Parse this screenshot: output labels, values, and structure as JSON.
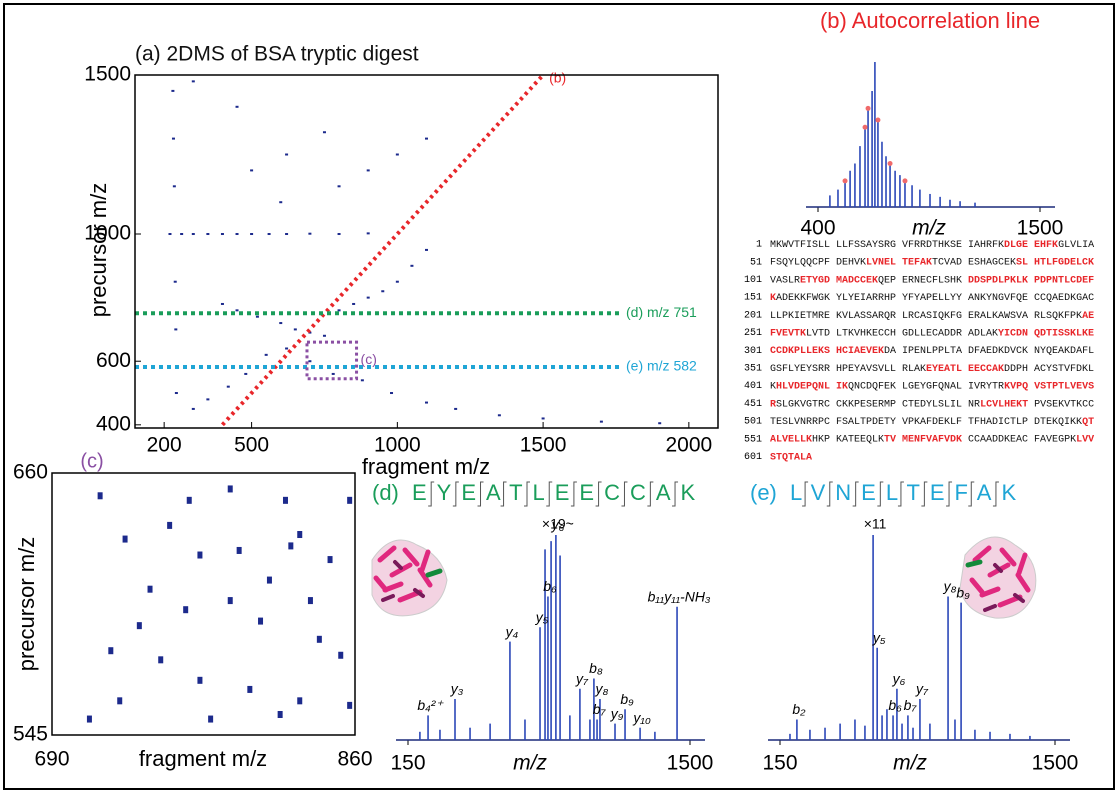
{
  "chart_data": [
    {
      "type": "scatter",
      "title": "(a) 2DMS of BSA tryptic digest",
      "xlabel": "fragment m/z",
      "ylabel": "precursor m/z",
      "xlim": [
        100,
        2100
      ],
      "xticks": [
        200,
        500,
        1000,
        1500,
        2000
      ],
      "ylim": [
        390,
        1500
      ],
      "yticks": [
        400,
        600,
        1000,
        1500
      ],
      "series": [
        {
          "color": "#1c2a8c",
          "x": [
            220,
            260,
            300,
            350,
            400,
            450,
            500,
            560,
            620,
            700,
            800,
            900,
            230,
            232,
            235,
            238,
            240,
            242,
            400,
            450,
            520,
            600,
            650,
            700,
            750,
            800,
            850,
            900,
            950,
            1000,
            1050,
            1100,
            300,
            350,
            420,
            480,
            550,
            620,
            700,
            780,
            880,
            980,
            1100,
            1200,
            1350,
            1500,
            1700,
            1900,
            500,
            620,
            750,
            600,
            800,
            900,
            1000,
            1100,
            450,
            300
          ],
          "values": [
            1000,
            1000,
            1000,
            1000,
            1000,
            1000,
            1000,
            1000,
            1000,
            1001,
            1000,
            1002,
            1450,
            1300,
            1150,
            850,
            700,
            500,
            780,
            760,
            740,
            720,
            700,
            690,
            680,
            760,
            780,
            800,
            820,
            850,
            900,
            950,
            450,
            480,
            520,
            560,
            620,
            640,
            600,
            560,
            540,
            500,
            470,
            450,
            430,
            420,
            410,
            405,
            1200,
            1250,
            1320,
            1100,
            1150,
            1200,
            1250,
            1300,
            1400,
            1480
          ]
        },
        {
          "name": "(b)",
          "type": "line",
          "color": "#e8262a",
          "x": [
            400,
            1500
          ],
          "values": [
            400,
            1500
          ]
        }
      ],
      "hlines": [
        {
          "y": 751,
          "label": "(d) m/z 751",
          "color": "#1a9d5a"
        },
        {
          "y": 582,
          "label": "(e) m/z 582",
          "color": "#1fa5d5"
        }
      ],
      "regions": [
        {
          "label": "(c)",
          "x": [
            690,
            860
          ],
          "y": [
            545,
            660
          ],
          "color": "#8a4fa3"
        }
      ]
    },
    {
      "type": "stem",
      "title": "(b) Autocorrelation line",
      "title_color": "#e8262a",
      "xlabel": "m/z",
      "xlim": [
        400,
        1500
      ],
      "xticks": [
        400,
        1500
      ],
      "ylim": [
        0,
        100
      ],
      "series": [
        {
          "color": "#2b47b8",
          "x": [
            459,
            499,
            534,
            559,
            583,
            608,
            633,
            648,
            668,
            682,
            697,
            717,
            737,
            757,
            782,
            806,
            831,
            866,
            905,
            955,
            1005,
            1054,
            1104,
            1178
          ],
          "values": [
            8,
            12,
            18,
            25,
            30,
            42,
            55,
            68,
            80,
            100,
            60,
            45,
            35,
            30,
            25,
            22,
            18,
            15,
            12,
            9,
            7,
            5,
            4,
            3
          ]
        },
        {
          "type": "dot",
          "color": "#f06a6a",
          "x": [
            534,
            633,
            648,
            697,
            757,
            831
          ],
          "values": [
            18,
            55,
            68,
            60,
            30,
            18
          ]
        }
      ]
    },
    {
      "type": "scatter",
      "title": "(c)",
      "title_color": "#8a4fa3",
      "xlabel": "fragment m/z",
      "ylabel": "precursor m/z",
      "xlim": [
        690,
        860
      ],
      "xticks": [
        690,
        860
      ],
      "ylim": [
        545,
        660
      ],
      "yticks": [
        545,
        660
      ],
      "series": [
        {
          "color": "#1c2a8c",
          "x": [
            731,
            756,
            773,
            795,
            824,
            829,
            846,
            745,
            765,
            790,
            807,
            840,
            723,
            751,
            773,
            801,
            829,
            852,
            728,
            711,
            779,
            818,
            857,
            739,
            812,
            835,
            767,
            717,
            790,
            821,
            857
          ],
          "values": [
            631,
            637,
            624,
            626,
            628,
            633,
            622,
            609,
            600,
            604,
            595,
            587,
            582,
            578,
            569,
            565,
            560,
            580,
            560,
            552,
            552,
            554,
            558,
            593,
            613,
            604,
            648,
            650,
            653,
            648,
            648
          ]
        }
      ]
    },
    {
      "type": "stem",
      "label": "(d)",
      "peptide": "EYEATLEECCAK",
      "title_color": "#1a9d5a",
      "xlabel": "m/z",
      "xlim": [
        150,
        1500
      ],
      "xticks": [
        150,
        1500
      ],
      "ylim": [
        0,
        100
      ],
      "scale_note": "×19~",
      "series": [
        {
          "color": "#2b47b8",
          "x": [
            207,
            246,
            303,
            375,
            447,
            543,
            638,
            710,
            782,
            806,
            820,
            835,
            858,
            878,
            925,
            973,
            1021,
            1040,
            1055,
            1069,
            1141,
            1189,
            1261,
            1332,
            1438
          ],
          "values": [
            4,
            12,
            5,
            20,
            6,
            8,
            48,
            10,
            55,
            93,
            70,
            97,
            100,
            90,
            12,
            25,
            10,
            30,
            10,
            20,
            8,
            15,
            6,
            4,
            65
          ]
        }
      ],
      "annotations": [
        {
          "text": "b₄²⁺",
          "x": 246
        },
        {
          "text": "y₃",
          "x": 375
        },
        {
          "text": "y₄",
          "x": 638
        },
        {
          "text": "y₅",
          "x": 782
        },
        {
          "text": "b₆",
          "x": 820
        },
        {
          "text": "y₆",
          "x": 858
        },
        {
          "text": "y₇",
          "x": 973
        },
        {
          "text": "b₈",
          "x": 1040
        },
        {
          "text": "b₇",
          "x": 1055
        },
        {
          "text": "y₈",
          "x": 1069
        },
        {
          "text": "y₉",
          "x": 1141
        },
        {
          "text": "b₉",
          "x": 1189
        },
        {
          "text": "y₁₀",
          "x": 1261
        },
        {
          "text": "b₁₁y₁₁-NH₃",
          "x": 1438
        }
      ]
    },
    {
      "type": "stem",
      "label": "(e)",
      "peptide": "LVNELTEFAK",
      "title_color": "#1fa5d5",
      "xlabel": "m/z",
      "xlim": [
        150,
        1500
      ],
      "xticks": [
        150,
        1500
      ],
      "ylim": [
        0,
        100
      ],
      "scale_note": "×11",
      "series": [
        {
          "color": "#2b47b8",
          "x": [
            199,
            233,
            297,
            371,
            445,
            518,
            567,
            607,
            627,
            651,
            675,
            705,
            724,
            749,
            778,
            803,
            837,
            886,
            975,
            1009,
            1039,
            1107,
            1181,
            1279,
            1377
          ],
          "values": [
            3,
            10,
            5,
            6,
            8,
            10,
            7,
            100,
            45,
            12,
            15,
            12,
            25,
            8,
            12,
            6,
            20,
            8,
            70,
            10,
            67,
            5,
            4,
            3,
            2
          ]
        }
      ],
      "annotations": [
        {
          "text": "b₂",
          "x": 233
        },
        {
          "text": "y₅",
          "x": 627
        },
        {
          "text": "b₆",
          "x": 705
        },
        {
          "text": "y₆",
          "x": 724
        },
        {
          "text": "b₇",
          "x": 778
        },
        {
          "text": "y₇",
          "x": 837
        },
        {
          "text": "y₈",
          "x": 975
        },
        {
          "text": "b₉",
          "x": 1039
        }
      ]
    }
  ],
  "sequence": {
    "highlight_color": "#e8262a",
    "rows": [
      {
        "start": 1,
        "segments": [
          {
            "text": "MKWVTFISLL LLFSSAYSRG VFRRDTHKSE IAHRFK",
            "highlight": false
          },
          {
            "text": "DLGE EHFK",
            "highlight": true
          },
          {
            "text": "GLVLIA",
            "highlight": false
          }
        ]
      },
      {
        "start": 51,
        "segments": [
          {
            "text": "FSQYLQQCPF DEHVK",
            "highlight": false
          },
          {
            "text": "LVNEL TEFAK",
            "highlight": true
          },
          {
            "text": "TCVAD ESHAGCEK",
            "highlight": false
          },
          {
            "text": "SL HTLFGDELCK",
            "highlight": true
          }
        ]
      },
      {
        "start": 101,
        "segments": [
          {
            "text": "VASLR",
            "highlight": false
          },
          {
            "text": "ETYGD MADCCEK",
            "highlight": true
          },
          {
            "text": "QEP ERNECFLSHK ",
            "highlight": false
          },
          {
            "text": "DDSPDLPKLK PDPNTLCDEF",
            "highlight": true
          }
        ]
      },
      {
        "start": 151,
        "segments": [
          {
            "text": "K",
            "highlight": true
          },
          {
            "text": "ADEKKFWGK YLYEIARRHP YFYAPELLYY ANKYNGVFQE CCQAEDKGAC",
            "highlight": false
          }
        ]
      },
      {
        "start": 201,
        "segments": [
          {
            "text": "LLPKIETMRE KVLASSARQR LRCASIQKFG ERALKAWSVA RLSQKFPK",
            "highlight": false
          },
          {
            "text": "AE",
            "highlight": true
          }
        ]
      },
      {
        "start": 251,
        "segments": [
          {
            "text": "FVEVTK",
            "highlight": true
          },
          {
            "text": "LVTD LTKVHKECCH GDLLECADDR ADLAK",
            "highlight": false
          },
          {
            "text": "YICDN QDTISSKLKE",
            "highlight": true
          }
        ]
      },
      {
        "start": 301,
        "segments": [
          {
            "text": "CCDKPLLEKS HCIAEVEK",
            "highlight": true
          },
          {
            "text": "DA IPENLPPLTA DFAEDKDVCK NYQEAKDAFL",
            "highlight": false
          }
        ]
      },
      {
        "start": 351,
        "segments": [
          {
            "text": "GSFLYEYSRR HPEYAVSVLL RLAK",
            "highlight": false
          },
          {
            "text": "EYEATL EECCAK",
            "highlight": true
          },
          {
            "text": "DDPH ACYSTVFDKL",
            "highlight": false
          }
        ]
      },
      {
        "start": 401,
        "segments": [
          {
            "text": "K",
            "highlight": false
          },
          {
            "text": "HLVDEPQNL IK",
            "highlight": true
          },
          {
            "text": "QNCDQFEK LGEYGFQNAL IVRYTR",
            "highlight": false
          },
          {
            "text": "KVPQ VSTPTLVEVS",
            "highlight": true
          }
        ]
      },
      {
        "start": 451,
        "segments": [
          {
            "text": "R",
            "highlight": true
          },
          {
            "text": "SLGKVGTRC CKKPESERMP CTEDYLSLIL NR",
            "highlight": false
          },
          {
            "text": "LCVLHEKT",
            "highlight": true
          },
          {
            "text": " PVSEKVTKCC",
            "highlight": false
          }
        ]
      },
      {
        "start": 501,
        "segments": [
          {
            "text": "TESLVNRRPC FSALTPDETY VPKAFDEKLF TFHADICTLP DTEKQIKK",
            "highlight": false
          },
          {
            "text": "QT",
            "highlight": true
          }
        ]
      },
      {
        "start": 551,
        "segments": [
          {
            "text": "ALVELLK",
            "highlight": true
          },
          {
            "text": "HKP KATEEQLK",
            "highlight": false
          },
          {
            "text": "TV MENFVAFVDK",
            "highlight": true
          },
          {
            "text": " CCAADDKEAC FAVEGPK",
            "highlight": false
          },
          {
            "text": "LVV",
            "highlight": true
          }
        ]
      },
      {
        "start": 601,
        "segments": [
          {
            "text": "STQTALA",
            "highlight": true
          }
        ]
      }
    ]
  }
}
